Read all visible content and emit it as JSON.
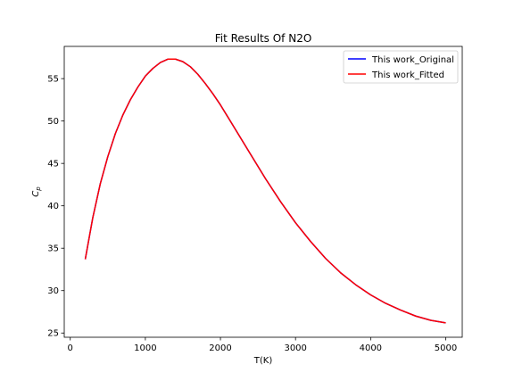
{
  "chart_data": {
    "type": "line",
    "title": "Fit Results Of N2O",
    "xlabel": "T(K)",
    "ylabel_main": "C",
    "ylabel_sub": "p",
    "xlim": [
      -80,
      5220
    ],
    "ylim": [
      24.5,
      58.8
    ],
    "xticks": [
      0,
      1000,
      2000,
      3000,
      4000,
      5000
    ],
    "yticks": [
      25,
      30,
      35,
      40,
      45,
      50,
      55
    ],
    "grid": false,
    "legend_position": "top-right",
    "series": [
      {
        "name": "This work_Original",
        "color": "#0000ff",
        "x": [
          200,
          300,
          400,
          500,
          600,
          700,
          800,
          900,
          1000,
          1100,
          1200,
          1300,
          1400,
          1500,
          1600,
          1700,
          1800,
          1900,
          2000,
          2200,
          2400,
          2600,
          2800,
          3000,
          3200,
          3400,
          3600,
          3800,
          4000,
          4200,
          4400,
          4600,
          4800,
          5000
        ],
        "y": [
          33.7,
          38.6,
          42.6,
          45.8,
          48.5,
          50.7,
          52.5,
          54.0,
          55.3,
          56.2,
          56.9,
          57.3,
          57.3,
          57.0,
          56.4,
          55.5,
          54.4,
          53.2,
          51.9,
          49.0,
          46.1,
          43.2,
          40.5,
          38.0,
          35.8,
          33.8,
          32.1,
          30.7,
          29.5,
          28.5,
          27.7,
          27.0,
          26.5,
          26.2
        ]
      },
      {
        "name": "This work_Fitted",
        "color": "#ff0000",
        "x": [
          200,
          300,
          400,
          500,
          600,
          700,
          800,
          900,
          1000,
          1100,
          1200,
          1300,
          1400,
          1500,
          1600,
          1700,
          1800,
          1900,
          2000,
          2200,
          2400,
          2600,
          2800,
          3000,
          3200,
          3400,
          3600,
          3800,
          4000,
          4200,
          4400,
          4600,
          4800,
          5000
        ],
        "y": [
          33.7,
          38.6,
          42.6,
          45.8,
          48.5,
          50.7,
          52.5,
          54.0,
          55.3,
          56.2,
          56.9,
          57.3,
          57.3,
          57.0,
          56.4,
          55.5,
          54.4,
          53.2,
          51.9,
          49.0,
          46.1,
          43.2,
          40.5,
          38.0,
          35.8,
          33.8,
          32.1,
          30.7,
          29.5,
          28.5,
          27.7,
          27.0,
          26.5,
          26.2
        ]
      }
    ]
  }
}
